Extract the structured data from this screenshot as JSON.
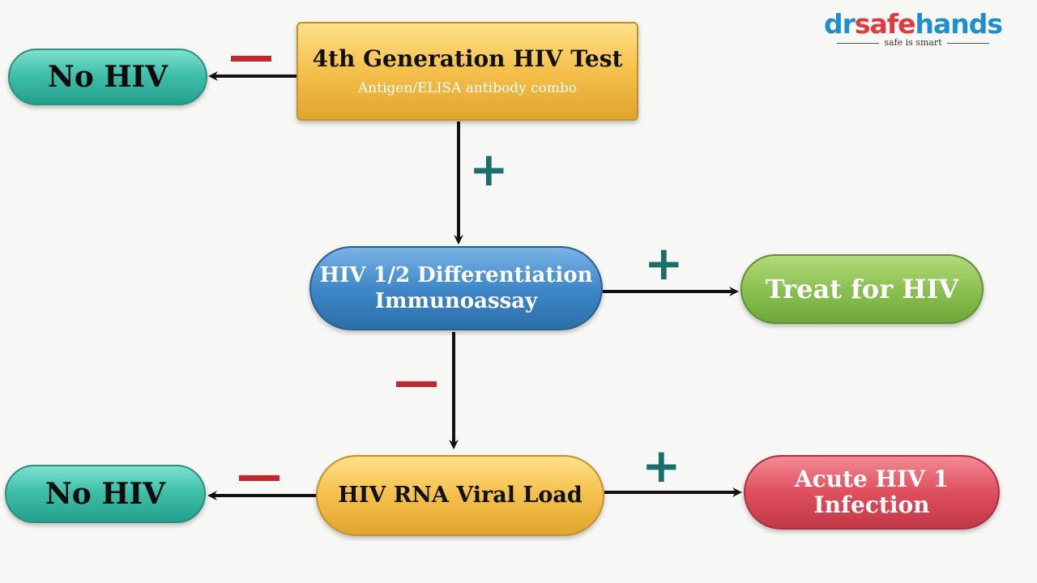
{
  "logo": {
    "dr": "dr",
    "safe": "safe",
    "hands": "hands",
    "tagline": "safe is smart"
  },
  "nodes": {
    "test4th": {
      "title": "4th Generation HIV Test",
      "subtitle": "Antigen/ELISA antibody combo"
    },
    "no_hiv_top": {
      "label": "No HIV"
    },
    "differentiation": {
      "line1": "HIV 1/2 Differentiation",
      "line2": "Immunoassay"
    },
    "treat": {
      "label": "Treat for HIV"
    },
    "viral_load": {
      "label": "HIV RNA Viral Load"
    },
    "no_hiv_bottom": {
      "label": "No HIV"
    },
    "acute": {
      "line1": "Acute HIV 1",
      "line2": "Infection"
    }
  },
  "signs": {
    "minus": "—",
    "plus": "+"
  },
  "colors": {
    "teal": "#3fc0aa",
    "gold": "#f5c04a",
    "blue": "#3f88c9",
    "green": "#8cc152",
    "red": "#df4f5e",
    "minus_sign": "#c0282e",
    "plus_sign": "#1c6e6a"
  }
}
